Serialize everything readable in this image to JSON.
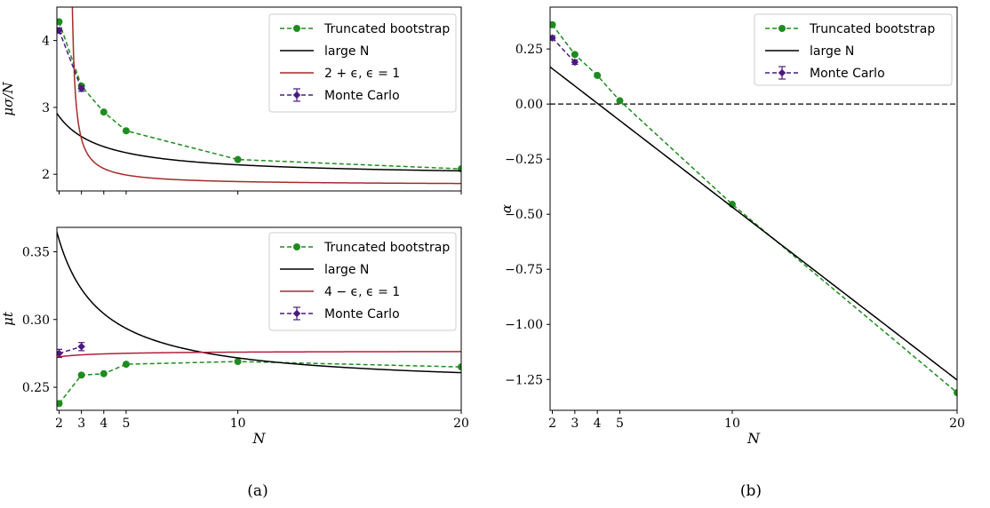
{
  "figure_labels": {
    "a": "(a)",
    "b": "(b)"
  },
  "colors": {
    "bootstrap": "#1f8c1f",
    "large_n": "#000000",
    "epsilon_top": "#a52a2a",
    "epsilon_bottom": "#b0203c",
    "monte_carlo": "#4b1a7e",
    "zero_line": "#000000"
  },
  "chart_data": [
    {
      "id": "top",
      "type": "line",
      "ylabel": "μσ/N",
      "xlim": [
        1.9,
        20
      ],
      "ylim": [
        1.75,
        4.5
      ],
      "yticks": [
        2,
        3,
        4
      ],
      "xticks": [
        2,
        3,
        4,
        5,
        10,
        20
      ],
      "xticklabels": false,
      "legend_position": "top-right",
      "series": [
        {
          "name": "Truncated bootstrap",
          "style": "dashed-marker",
          "color_key": "bootstrap",
          "x": [
            2,
            3,
            4,
            5,
            10,
            20
          ],
          "y": [
            4.28,
            3.32,
            2.93,
            2.65,
            2.22,
            2.08
          ]
        },
        {
          "name": "large N",
          "style": "solid",
          "color_key": "large_n",
          "curve": {
            "form": "a+b/N",
            "a": 1.96,
            "b": 1.81
          }
        },
        {
          "name": "2 + ϵ, ϵ = 1",
          "style": "solid",
          "color_key": "epsilon_top",
          "curve": {
            "form": "a+b/(N-c)",
            "a": 1.84,
            "b": 0.38,
            "c": 2.45
          }
        },
        {
          "name": "Monte Carlo",
          "style": "errorbar",
          "color_key": "monte_carlo",
          "x": [
            2,
            3
          ],
          "y": [
            4.15,
            3.28
          ],
          "yerr": [
            0.04,
            0.04
          ]
        }
      ]
    },
    {
      "id": "bottom",
      "type": "line",
      "ylabel": "μt",
      "xlabel": "N",
      "xlim": [
        1.9,
        20
      ],
      "ylim": [
        0.233,
        0.368
      ],
      "yticks": [
        0.25,
        0.3,
        0.35
      ],
      "yticklabels": [
        "0.25",
        "0.30",
        "0.35"
      ],
      "xticks": [
        2,
        3,
        4,
        5,
        10,
        20
      ],
      "xticklabels": [
        "2",
        "3",
        "4",
        "5",
        "10",
        "20"
      ],
      "legend_position": "top-right",
      "series": [
        {
          "name": "Truncated bootstrap",
          "style": "dashed-marker",
          "color_key": "bootstrap",
          "x": [
            2,
            3,
            4,
            5,
            10,
            20
          ],
          "y": [
            0.238,
            0.259,
            0.26,
            0.267,
            0.269,
            0.265
          ]
        },
        {
          "name": "large N",
          "style": "solid",
          "color_key": "large_n",
          "curve": {
            "form": "a+b/N",
            "a": 0.2499,
            "b": 0.2177
          }
        },
        {
          "name": "4 − ϵ, ϵ = 1",
          "style": "solid",
          "color_key": "epsilon_bottom",
          "curve": {
            "form": "a+b/N",
            "a": 0.2768,
            "b": -0.0087
          }
        },
        {
          "name": "Monte Carlo",
          "style": "errorbar",
          "color_key": "monte_carlo",
          "x": [
            2,
            3
          ],
          "y": [
            0.275,
            0.28
          ],
          "yerr": [
            0.003,
            0.003
          ]
        }
      ]
    },
    {
      "id": "right",
      "type": "line",
      "ylabel": "α",
      "xlabel": "N",
      "xlim": [
        1.9,
        20
      ],
      "ylim": [
        -1.39,
        0.44
      ],
      "yticks": [
        0.25,
        0.0,
        -0.25,
        -0.5,
        -0.75,
        -1.0,
        -1.25
      ],
      "yticklabels": [
        "0.25",
        "0.00",
        "−0.25",
        "−0.50",
        "−0.75",
        "−1.00",
        "−1.25"
      ],
      "xticks": [
        2,
        3,
        4,
        5,
        10,
        20
      ],
      "xticklabels": [
        "2",
        "3",
        "4",
        "5",
        "10",
        "20"
      ],
      "hline": 0,
      "legend_position": "top-right",
      "series": [
        {
          "name": "Truncated bootstrap",
          "style": "dashed-marker",
          "color_key": "bootstrap",
          "x": [
            2,
            3,
            4,
            5,
            10,
            20
          ],
          "y": [
            0.36,
            0.225,
            0.13,
            0.015,
            -0.455,
            -1.31
          ]
        },
        {
          "name": "large N",
          "style": "solid",
          "color_key": "large_n",
          "curve": {
            "form": "a+b*N",
            "a": 0.3175,
            "b": -0.0785
          }
        },
        {
          "name": "Monte Carlo",
          "style": "errorbar",
          "color_key": "monte_carlo",
          "x": [
            2,
            3
          ],
          "y": [
            0.3,
            0.19
          ],
          "yerr": [
            0.01,
            0.01
          ]
        }
      ]
    }
  ]
}
